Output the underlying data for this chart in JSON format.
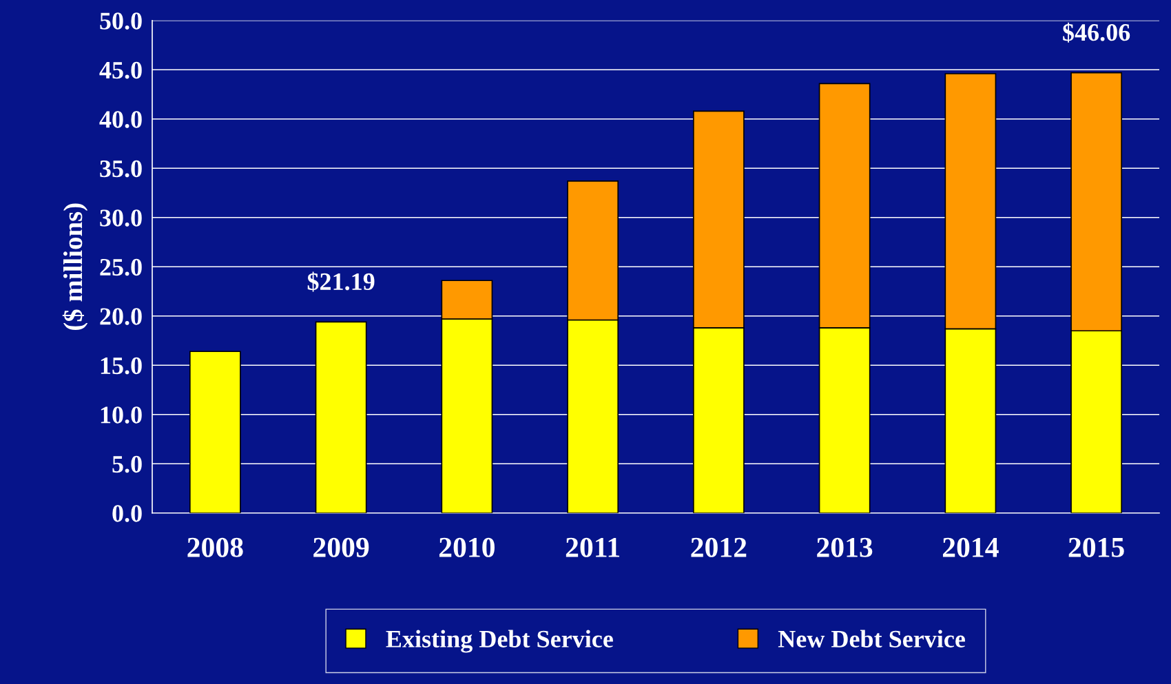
{
  "chart_data": {
    "type": "bar",
    "ylabel": "($ millions)",
    "stacked": true,
    "categories": [
      "2008",
      "2009",
      "2010",
      "2011",
      "2012",
      "2013",
      "2014",
      "2015"
    ],
    "series": [
      {
        "name": "Existing Debt Service",
        "color": "#ffff00",
        "values": [
          16.4,
          19.4,
          19.7,
          19.6,
          18.8,
          18.8,
          18.7,
          18.5
        ]
      },
      {
        "name": "New Debt Service",
        "color": "#ff9900",
        "values": [
          null,
          null,
          3.9,
          14.1,
          22.0,
          24.8,
          25.9,
          26.2
        ]
      }
    ],
    "annotations": [
      {
        "text": "$21.19",
        "x": "2009",
        "y": 19.4
      },
      {
        "text": "$46.06",
        "x": "2015",
        "y": 44.7
      }
    ],
    "ylim": [
      0,
      50
    ],
    "yticks": [
      {
        "value": 0,
        "label": "0.0"
      },
      {
        "value": 5,
        "label": "5.0"
      },
      {
        "value": 10,
        "label": "10.0"
      },
      {
        "value": 15,
        "label": "15.0"
      },
      {
        "value": 20,
        "label": "20.0"
      },
      {
        "value": 25,
        "label": "25.0"
      },
      {
        "value": 30,
        "label": "30.0"
      },
      {
        "value": 35,
        "label": "35.0"
      },
      {
        "value": 40,
        "label": "40.0"
      },
      {
        "value": 45,
        "label": "45.0"
      },
      {
        "value": 50,
        "label": "50.0"
      }
    ],
    "grid": "y",
    "legend": "bottom"
  }
}
